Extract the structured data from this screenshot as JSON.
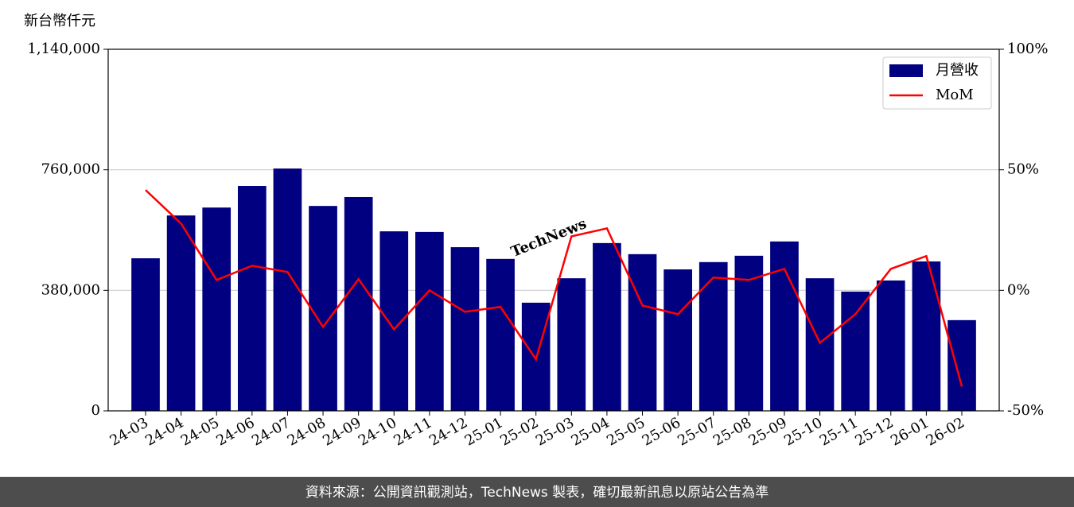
{
  "chart_data": {
    "type": "bar-line",
    "y_unit_label": "新台幣仟元",
    "watermark": "TechNews",
    "footer": "資料來源：公開資訊觀測站，TechNews 製表，確切最新訊息以原站公告為準",
    "categories": [
      "24-03",
      "24-04",
      "24-05",
      "24-06",
      "24-07",
      "24-08",
      "24-09",
      "24-10",
      "24-11",
      "24-12",
      "25-01",
      "25-02",
      "25-03",
      "25-04",
      "25-05",
      "25-06",
      "25-07",
      "25-08",
      "25-09",
      "25-10",
      "25-11",
      "25-12",
      "26-01",
      "26-02"
    ],
    "series": [
      {
        "name": "月營收",
        "color": "#000080",
        "type": "bar",
        "values": [
          481000,
          616000,
          641000,
          709000,
          764000,
          646000,
          674000,
          566000,
          564000,
          516000,
          479000,
          341000,
          418000,
          529000,
          494000,
          446000,
          469000,
          489000,
          534000,
          418000,
          376000,
          411000,
          471000,
          286000
        ]
      },
      {
        "name": "MoM",
        "color": "#ff0000",
        "type": "line",
        "axis": "y2",
        "values": [
          41.6,
          27.7,
          4.3,
          10.2,
          7.6,
          -15.2,
          4.6,
          -16.2,
          0,
          -8.9,
          -6.9,
          -28.6,
          22.4,
          25.7,
          -6.3,
          -9.9,
          5.3,
          4.3,
          8.9,
          -21.8,
          -9.9,
          8.9,
          14.2,
          -39.9
        ]
      }
    ],
    "ylim": [
      0,
      1140000
    ],
    "yticks": [
      0,
      {
        "value": 380000,
        "label": "380,000"
      },
      {
        "value": 760000,
        "label": "760,000"
      },
      {
        "value": 1140000,
        "label": "1,140,000"
      }
    ],
    "y2lim": [
      -50,
      100
    ],
    "y2ticks": [
      {
        "value": -50,
        "label": "-50%"
      },
      {
        "value": 0,
        "label": "0%"
      },
      {
        "value": 50,
        "label": "50%"
      },
      {
        "value": 100,
        "label": "100%"
      }
    ],
    "grid": true,
    "legend": "upper right"
  }
}
